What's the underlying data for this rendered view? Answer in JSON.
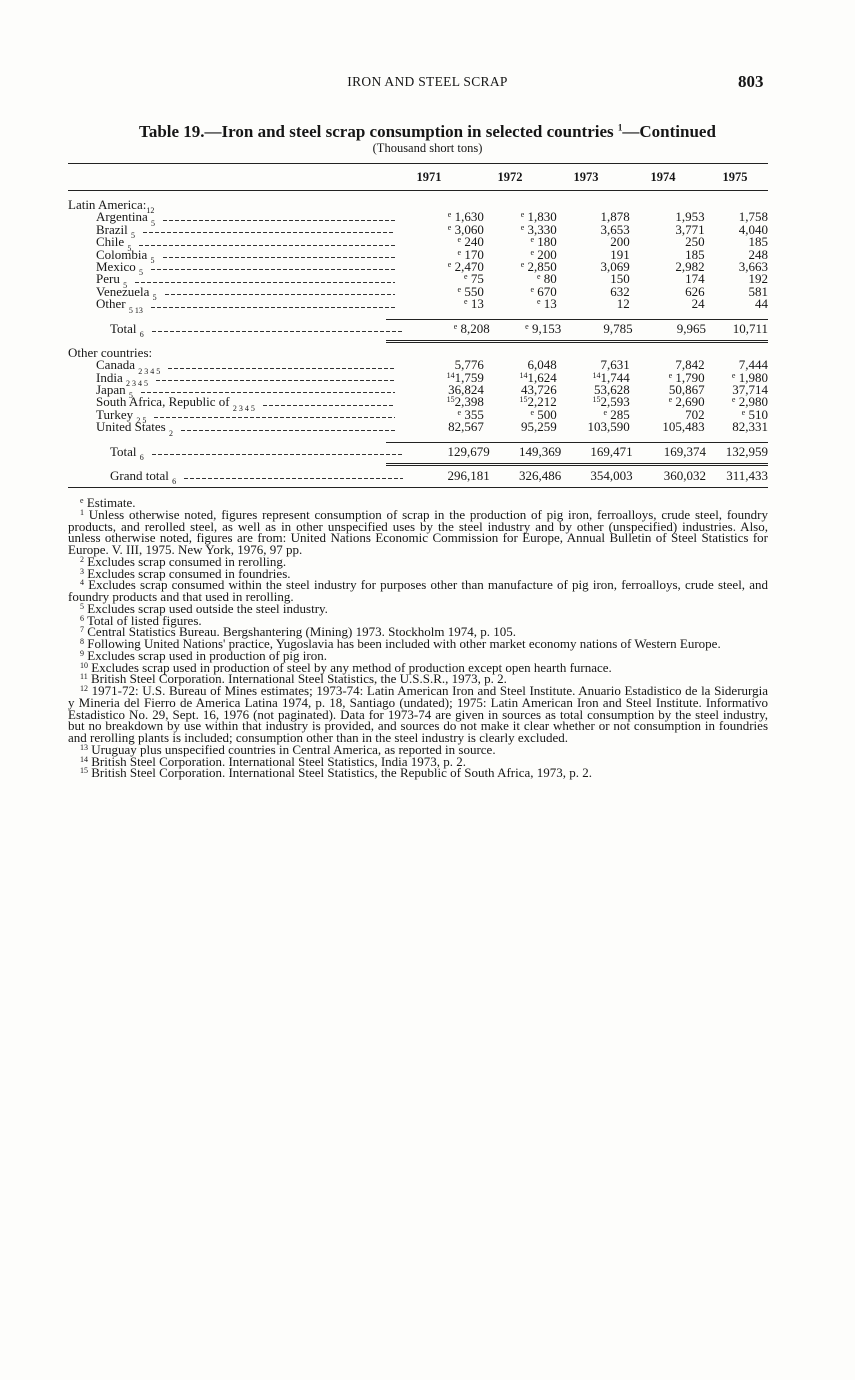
{
  "header": {
    "running_title": "IRON AND STEEL SCRAP",
    "page_number": "803"
  },
  "table": {
    "title": "Table 19.—Iron and steel scrap consumption in selected countries",
    "title_note": "1",
    "title_suffix": "—Continued",
    "subtitle": "(Thousand short tons)",
    "columns": [
      "1971",
      "1972",
      "1973",
      "1974",
      "1975"
    ],
    "sections": [
      {
        "heading": "Latin America:",
        "heading_note": "12",
        "rows": [
          {
            "label": "Argentina",
            "note": "5",
            "cells": [
              [
                "e",
                "1,630"
              ],
              [
                "e",
                "1,830"
              ],
              [
                "",
                "1,878"
              ],
              [
                "",
                "1,953"
              ],
              [
                "",
                "1,758"
              ]
            ]
          },
          {
            "label": "Brazil",
            "note": "5",
            "cells": [
              [
                "e",
                "3,060"
              ],
              [
                "e",
                "3,330"
              ],
              [
                "",
                "3,653"
              ],
              [
                "",
                "3,771"
              ],
              [
                "",
                "4,040"
              ]
            ]
          },
          {
            "label": "Chile",
            "note": "5",
            "cells": [
              [
                "e",
                "240"
              ],
              [
                "e",
                "180"
              ],
              [
                "",
                "200"
              ],
              [
                "",
                "250"
              ],
              [
                "",
                "185"
              ]
            ]
          },
          {
            "label": "Colombia",
            "note": "5",
            "cells": [
              [
                "e",
                "170"
              ],
              [
                "e",
                "200"
              ],
              [
                "",
                "191"
              ],
              [
                "",
                "185"
              ],
              [
                "",
                "248"
              ]
            ]
          },
          {
            "label": "Mexico",
            "note": "5",
            "cells": [
              [
                "e",
                "2,470"
              ],
              [
                "e",
                "2,850"
              ],
              [
                "",
                "3,069"
              ],
              [
                "",
                "2,982"
              ],
              [
                "",
                "3,663"
              ]
            ]
          },
          {
            "label": "Peru",
            "note": "5",
            "cells": [
              [
                "e",
                "75"
              ],
              [
                "e",
                "80"
              ],
              [
                "",
                "150"
              ],
              [
                "",
                "174"
              ],
              [
                "",
                "192"
              ]
            ]
          },
          {
            "label": "Venezuela",
            "note": "5",
            "cells": [
              [
                "e",
                "550"
              ],
              [
                "e",
                "670"
              ],
              [
                "",
                "632"
              ],
              [
                "",
                "626"
              ],
              [
                "",
                "581"
              ]
            ]
          },
          {
            "label": "Other",
            "note": "5 13",
            "cells": [
              [
                "e",
                "13"
              ],
              [
                "e",
                "13"
              ],
              [
                "",
                "12"
              ],
              [
                "",
                "24"
              ],
              [
                "",
                "44"
              ]
            ]
          }
        ],
        "total": {
          "label": "Total",
          "note": "6",
          "cells": [
            [
              "e",
              "8,208"
            ],
            [
              "e",
              "9,153"
            ],
            [
              "",
              "9,785"
            ],
            [
              "",
              "9,965"
            ],
            [
              "",
              "10,711"
            ]
          ]
        }
      },
      {
        "heading": "Other countries:",
        "heading_note": "",
        "rows": [
          {
            "label": "Canada",
            "note": "2 3 4 5",
            "cells": [
              [
                "",
                "5,776"
              ],
              [
                "",
                "6,048"
              ],
              [
                "",
                "7,631"
              ],
              [
                "",
                "7,842"
              ],
              [
                "",
                "7,444"
              ]
            ]
          },
          {
            "label": "India",
            "note": "2 3 4 5",
            "cells": [
              [
                "14",
                "1,759"
              ],
              [
                "14",
                "1,624"
              ],
              [
                "14",
                "1,744"
              ],
              [
                "e",
                "1,790"
              ],
              [
                "e",
                "1,980"
              ]
            ]
          },
          {
            "label": "Japan",
            "note": "5",
            "cells": [
              [
                "",
                "36,824"
              ],
              [
                "",
                "43,726"
              ],
              [
                "",
                "53,628"
              ],
              [
                "",
                "50,867"
              ],
              [
                "",
                "37,714"
              ]
            ]
          },
          {
            "label": "South Africa, Republic of",
            "note": "2 3 4 5",
            "cells": [
              [
                "15",
                "2,398"
              ],
              [
                "15",
                "2,212"
              ],
              [
                "15",
                "2,593"
              ],
              [
                "e",
                "2,690"
              ],
              [
                "e",
                "2,980"
              ]
            ]
          },
          {
            "label": "Turkey",
            "note": "2 5",
            "cells": [
              [
                "e",
                "355"
              ],
              [
                "e",
                "500"
              ],
              [
                "e",
                "285"
              ],
              [
                "",
                "702"
              ],
              [
                "e",
                "510"
              ]
            ]
          },
          {
            "label": "United States",
            "note": "2",
            "cells": [
              [
                "",
                "82,567"
              ],
              [
                "",
                "95,259"
              ],
              [
                "",
                "103,590"
              ],
              [
                "",
                "105,483"
              ],
              [
                "",
                "82,331"
              ]
            ]
          }
        ],
        "total": {
          "label": "Total",
          "note": "6",
          "cells": [
            [
              "",
              "129,679"
            ],
            [
              "",
              "149,369"
            ],
            [
              "",
              "169,471"
            ],
            [
              "",
              "169,374"
            ],
            [
              "",
              "132,959"
            ]
          ]
        }
      }
    ],
    "grand_total": {
      "label": "Grand total",
      "note": "6",
      "cells": [
        [
          "",
          "296,181"
        ],
        [
          "",
          "326,486"
        ],
        [
          "",
          "354,003"
        ],
        [
          "",
          "360,032"
        ],
        [
          "",
          "311,433"
        ]
      ]
    }
  },
  "footnotes": [
    {
      "mark": "e",
      "text": "Estimate."
    },
    {
      "mark": "1",
      "text": "Unless otherwise noted, figures represent consumption of scrap in the production of pig iron, ferroalloys, crude steel, foundry products, and rerolled steel, as well as in other unspecified uses by the steel industry and by other (unspecified) industries. Also, unless otherwise noted, figures are from: United Nations Economic Commission for Europe, Annual Bulletin of Steel Statistics for Europe. V. III, 1975. New York, 1976, 97 pp."
    },
    {
      "mark": "2",
      "text": "Excludes scrap consumed in rerolling."
    },
    {
      "mark": "3",
      "text": "Excludes scrap consumed in foundries."
    },
    {
      "mark": "4",
      "text": "Excludes scrap consumed within the steel industry for purposes other than manufacture of pig iron, ferroalloys, crude steel, and foundry products and that used in rerolling."
    },
    {
      "mark": "5",
      "text": "Excludes scrap used outside the steel industry."
    },
    {
      "mark": "6",
      "text": "Total of listed figures."
    },
    {
      "mark": "7",
      "text": "Central Statistics Bureau. Bergshantering (Mining) 1973. Stockholm 1974, p. 105."
    },
    {
      "mark": "8",
      "text": "Following United Nations' practice, Yugoslavia has been included with other market economy nations of Western Europe."
    },
    {
      "mark": "9",
      "text": "Excludes scrap used in production of pig iron."
    },
    {
      "mark": "10",
      "text": "Excludes scrap used in production of steel by any method of production except open hearth furnace."
    },
    {
      "mark": "11",
      "text": "British Steel Corporation. International Steel Statistics, the U.S.S.R., 1973, p. 2."
    },
    {
      "mark": "12",
      "text": "1971-72: U.S. Bureau of Mines estimates; 1973-74: Latin American Iron and Steel Institute. Anuario Estadistico de la Siderurgia y Mineria del Fierro de America Latina 1974, p. 18, Santiago (undated); 1975: Latin American Iron and Steel Institute. Informativo Estadistico No. 29, Sept. 16, 1976 (not paginated). Data for 1973-74 are given in sources as total consumption by the steel industry, but no breakdown by use within that industry is provided, and sources do not make it clear whether or not consumption in foundries and rerolling plants is included; consumption other than in the steel industry is clearly excluded."
    },
    {
      "mark": "13",
      "text": "Uruguay plus unspecified countries in Central America, as reported in source."
    },
    {
      "mark": "14",
      "text": "British Steel Corporation. International Steel Statistics, India 1973, p. 2."
    },
    {
      "mark": "15",
      "text": "British Steel Corporation. International Steel Statistics, the Republic of South Africa, 1973, p. 2."
    }
  ]
}
